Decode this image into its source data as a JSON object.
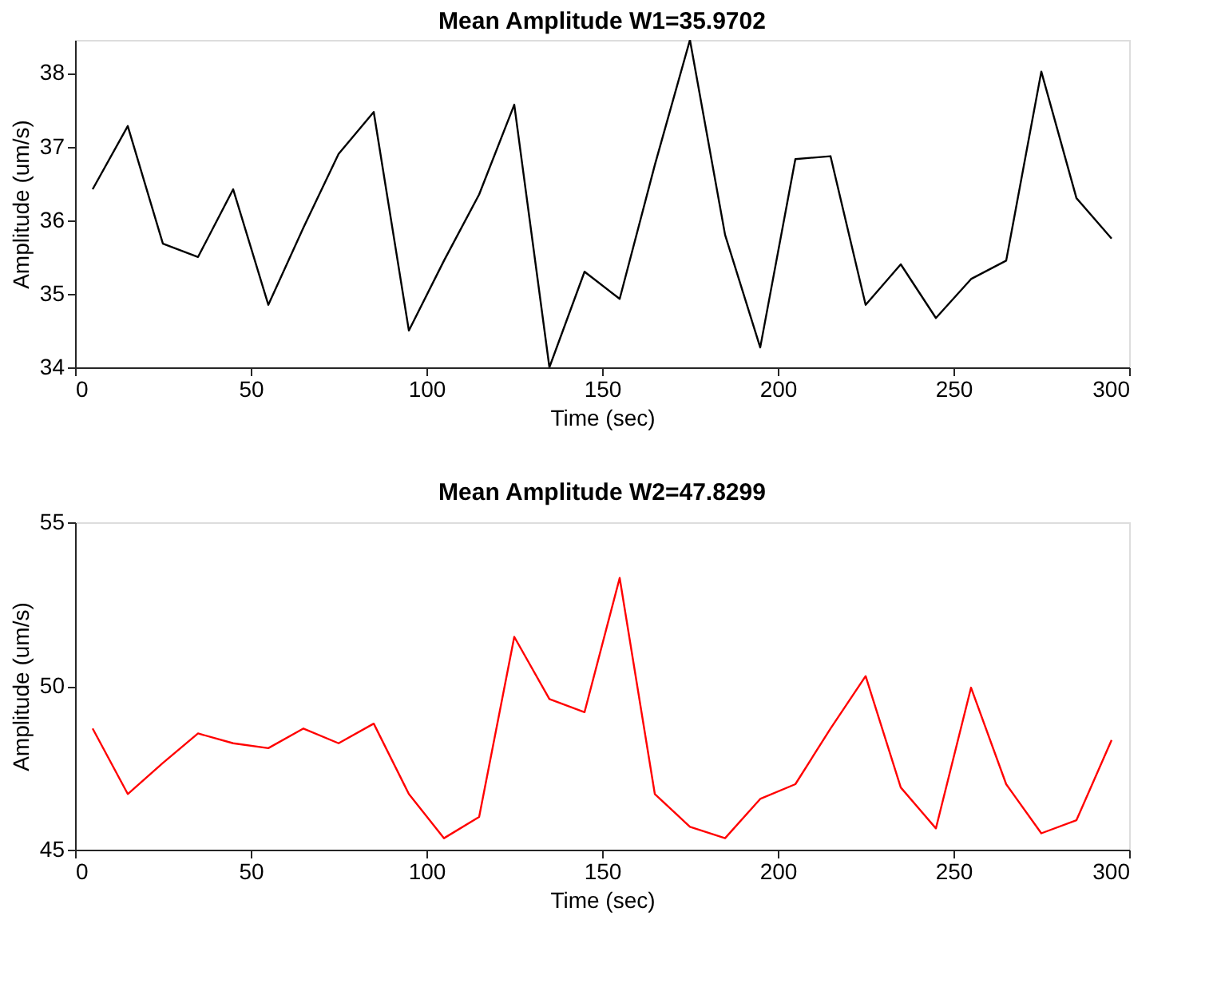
{
  "chart_data": [
    {
      "type": "line",
      "title": "Mean Amplitude W1=35.9702",
      "xlabel": "Time (sec)",
      "ylabel": "Amplitude (um/s)",
      "x": [
        5,
        15,
        25,
        35,
        45,
        55,
        65,
        75,
        85,
        95,
        105,
        115,
        125,
        135,
        145,
        155,
        165,
        175,
        185,
        195,
        205,
        215,
        225,
        235,
        245,
        255,
        265,
        275,
        285,
        295
      ],
      "series": [
        {
          "color": "#000000",
          "values": [
            36.42,
            37.28,
            35.68,
            35.5,
            36.42,
            34.85,
            35.9,
            36.9,
            37.47,
            34.5,
            35.45,
            36.35,
            37.57,
            34.0,
            35.3,
            34.93,
            36.75,
            38.45,
            35.8,
            34.27,
            36.83,
            36.87,
            34.85,
            35.4,
            34.67,
            35.2,
            35.45,
            38.02,
            36.3,
            35.75
          ]
        }
      ],
      "xlim": [
        0,
        300
      ],
      "xticks": [
        0,
        50,
        100,
        150,
        200,
        250,
        300
      ],
      "ylim": [
        34,
        38.45
      ],
      "yticks": [
        34,
        35,
        36,
        37,
        38
      ],
      "grid": false,
      "legend": false
    },
    {
      "type": "line",
      "title": "Mean Amplitude W2=47.8299",
      "xlabel": "Time (sec)",
      "ylabel": "Amplitude (um/s)",
      "x": [
        5,
        15,
        25,
        35,
        45,
        55,
        65,
        75,
        85,
        95,
        105,
        115,
        125,
        135,
        145,
        155,
        165,
        175,
        185,
        195,
        205,
        215,
        225,
        235,
        245,
        255,
        265,
        275,
        285,
        295
      ],
      "series": [
        {
          "color": "#ff0000",
          "values": [
            48.7,
            46.7,
            47.65,
            48.55,
            48.25,
            48.1,
            48.7,
            48.25,
            48.85,
            46.7,
            45.35,
            46.0,
            51.5,
            49.6,
            49.2,
            53.3,
            46.7,
            45.7,
            45.35,
            46.55,
            47.0,
            48.7,
            50.3,
            46.9,
            45.65,
            49.95,
            47.0,
            45.5,
            45.9,
            48.35
          ]
        }
      ],
      "xlim": [
        0,
        300
      ],
      "xticks": [
        0,
        50,
        100,
        150,
        200,
        250,
        300
      ],
      "ylim": [
        45,
        55
      ],
      "yticks": [
        45,
        50,
        55
      ],
      "grid": false,
      "legend": false
    }
  ]
}
